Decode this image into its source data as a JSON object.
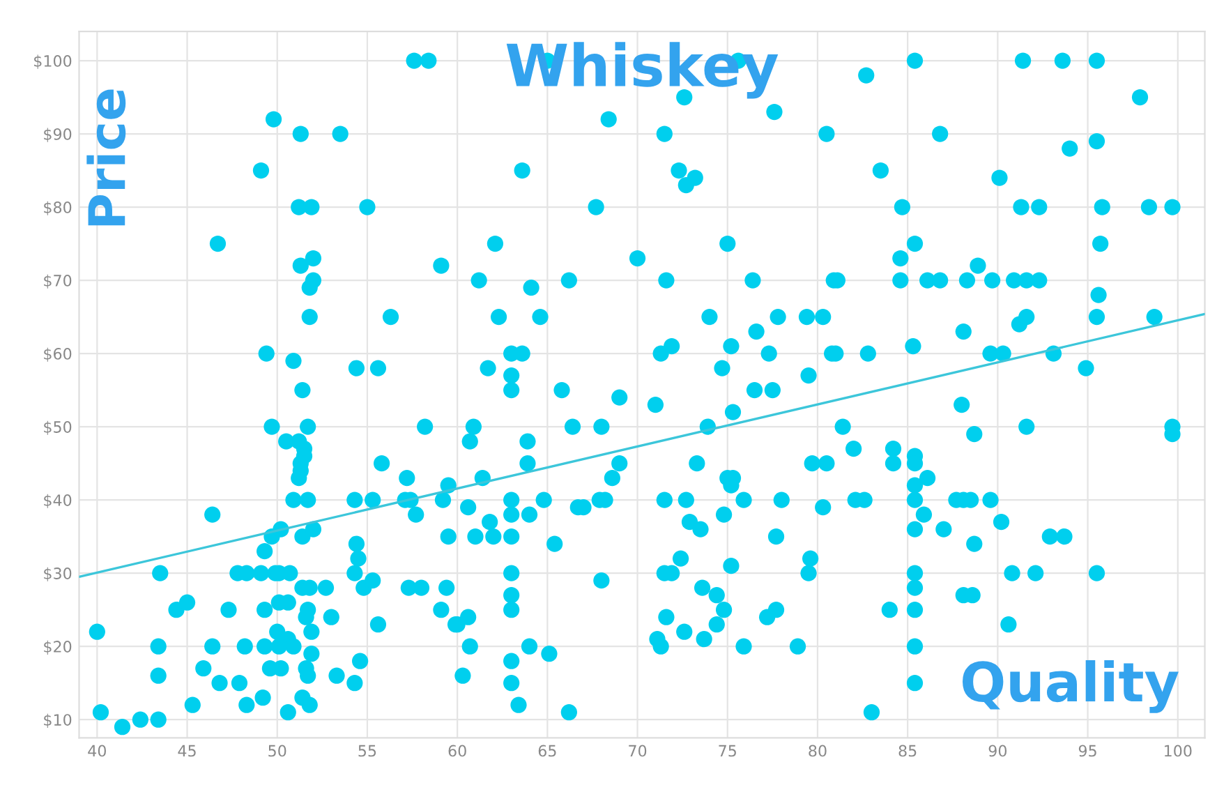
{
  "chart_data": {
    "type": "scatter",
    "title": "Whiskey",
    "xlabel": "Quality",
    "ylabel": "Price",
    "xlim": [
      39,
      101.5
    ],
    "ylim": [
      7.5,
      104
    ],
    "xticks": [
      40,
      45,
      50,
      55,
      60,
      65,
      70,
      75,
      80,
      85,
      90,
      95,
      100
    ],
    "yticks": [
      {
        "value": 10,
        "label": "$10"
      },
      {
        "value": 20,
        "label": "$20"
      },
      {
        "value": 30,
        "label": "$30"
      },
      {
        "value": 40,
        "label": "$40"
      },
      {
        "value": 50,
        "label": "$50"
      },
      {
        "value": 60,
        "label": "$60"
      },
      {
        "value": 70,
        "label": "$70"
      },
      {
        "value": 80,
        "label": "$80"
      },
      {
        "value": 90,
        "label": "$90"
      },
      {
        "value": 100,
        "label": "$100"
      }
    ],
    "grid": true,
    "series": [
      {
        "color": "#00cfee",
        "marker": "circle",
        "x": [
          57.6,
          58.4,
          49.8,
          51.3,
          53.5,
          49.1,
          51.2,
          51.9,
          55.0,
          46.7,
          52.0,
          51.3,
          59.1,
          52.0,
          51.8,
          51.8,
          56.3,
          49.4,
          50.9,
          54.4,
          55.6,
          51.4,
          49.7,
          51.7,
          58.2,
          50.5,
          51.2,
          51.5,
          51.5,
          51.3,
          51.3,
          51.2,
          55.8,
          57.2,
          50.9,
          51.7,
          54.3,
          55.3,
          57.1,
          57.4,
          59.2,
          59.5,
          46.4,
          57.7,
          49.7,
          50.2,
          51.4,
          52.0,
          59.5,
          49.3,
          54.4,
          54.5,
          43.5,
          47.8,
          48.3,
          49.1,
          49.9,
          50.1,
          50.7,
          54.3,
          51.4,
          51.8,
          52.7,
          54.8,
          55.3,
          57.3,
          58.0,
          59.4,
          44.4,
          45.0,
          47.3,
          49.3,
          50.1,
          50.6,
          51.7,
          51.6,
          53.0,
          59.1,
          59.9,
          55.6,
          40.0,
          50.0,
          50.6,
          51.9,
          50.9,
          43.4,
          46.4,
          48.2,
          49.3,
          50.1,
          51.9,
          45.9,
          49.6,
          50.2,
          51.6,
          54.6,
          43.4,
          51.7,
          53.3,
          46.8,
          47.9,
          54.3,
          45.3,
          48.3,
          49.2,
          51.4,
          51.8,
          40.2,
          50.6,
          41.4,
          42.4,
          43.4,
          65.0,
          75.6,
          72.6,
          77.6,
          68.4,
          71.5,
          80.5,
          63.6,
          72.3,
          73.2,
          72.7,
          67.7,
          62.1,
          75.0,
          70.0,
          61.2,
          64.1,
          66.2,
          71.6,
          76.4,
          80.9,
          62.3,
          64.6,
          74.0,
          77.8,
          79.4,
          80.3,
          76.6,
          63.0,
          63.6,
          71.3,
          71.9,
          75.2,
          77.3,
          80.8,
          61.7,
          63.0,
          74.7,
          79.5,
          63.0,
          65.8,
          76.5,
          77.5,
          69.0,
          71.0,
          75.3,
          60.9,
          66.4,
          68.0,
          73.9,
          60.7,
          63.9,
          63.9,
          69.0,
          73.3,
          79.7,
          80.5,
          68.6,
          75.0,
          75.3,
          75.2,
          61.4,
          63.0,
          64.8,
          67.9,
          68.2,
          71.5,
          72.7,
          75.9,
          78.0,
          60.6,
          66.7,
          67.0,
          80.3,
          61.8,
          63.0,
          64.0,
          72.9,
          73.5,
          74.8,
          61.0,
          62.0,
          63.0,
          77.7,
          65.4,
          72.4,
          79.6,
          63.0,
          71.5,
          71.9,
          75.2,
          79.5,
          68.0,
          63.0,
          73.6,
          74.4,
          63.0,
          74.8,
          77.7,
          60.0,
          60.6,
          71.6,
          77.2,
          74.4,
          72.6,
          71.1,
          71.3,
          73.7,
          60.7,
          64.0,
          65.1,
          75.9,
          78.9,
          63.0,
          60.3,
          63.0,
          63.4,
          66.2,
          85.4,
          91.4,
          93.6,
          95.5,
          82.7,
          97.9,
          86.8,
          94.0,
          95.5,
          83.5,
          90.1,
          84.7,
          91.3,
          92.3,
          95.8,
          98.4,
          99.7,
          85.4,
          95.7,
          84.6,
          88.9,
          81.1,
          84.6,
          86.1,
          86.8,
          88.3,
          89.7,
          90.9,
          91.6,
          92.3,
          95.6,
          91.2,
          91.6,
          95.5,
          98.7,
          88.1,
          81.0,
          82.8,
          85.3,
          89.6,
          90.3,
          93.1,
          94.9,
          88.0,
          81.4,
          91.6,
          99.7,
          99.7,
          88.7,
          82.0,
          84.2,
          85.4,
          84.2,
          85.4,
          86.1,
          85.4,
          82.1,
          82.6,
          85.4,
          87.7,
          88.1,
          88.5,
          89.6,
          85.9,
          90.2,
          85.4,
          87.0,
          92.9,
          93.7,
          88.7,
          85.4,
          90.8,
          92.1,
          95.5,
          85.4,
          88.1,
          88.6,
          84.0,
          85.4,
          90.6,
          85.4,
          85.4,
          83.0
        ],
        "values": [
          100,
          100,
          92,
          90,
          90,
          85,
          80,
          80,
          80,
          75,
          73,
          72,
          72,
          70,
          69,
          65,
          65,
          60,
          59,
          58,
          58,
          55,
          50,
          50,
          50,
          48,
          48,
          47,
          46,
          45,
          44,
          43,
          45,
          43,
          40,
          40,
          40,
          40,
          40,
          40,
          40,
          42,
          38,
          38,
          35,
          36,
          35,
          36,
          35,
          33,
          34,
          32,
          30,
          30,
          30,
          30,
          30,
          30,
          30,
          30,
          28,
          28,
          28,
          28,
          29,
          28,
          28,
          28,
          25,
          26,
          25,
          25,
          26,
          26,
          25,
          24,
          24,
          25,
          23,
          23,
          22,
          22,
          21,
          22,
          20,
          20,
          20,
          20,
          20,
          20,
          19,
          17,
          17,
          17,
          17,
          18,
          16,
          16,
          16,
          15,
          15,
          15,
          12,
          12,
          13,
          13,
          12,
          11,
          11,
          9,
          10,
          10,
          100,
          100,
          95,
          93,
          92,
          90,
          90,
          85,
          85,
          84,
          83,
          80,
          75,
          75,
          73,
          70,
          69,
          70,
          70,
          70,
          70,
          65,
          65,
          65,
          65,
          65,
          65,
          63,
          60,
          60,
          60,
          61,
          61,
          60,
          60,
          58,
          57,
          58,
          57,
          55,
          55,
          55,
          55,
          54,
          53,
          52,
          50,
          50,
          50,
          50,
          48,
          48,
          45,
          45,
          45,
          45,
          45,
          43,
          43,
          43,
          42,
          43,
          40,
          40,
          40,
          40,
          40,
          40,
          40,
          40,
          39,
          39,
          39,
          39,
          37,
          38,
          38,
          37,
          36,
          38,
          35,
          35,
          35,
          35,
          34,
          32,
          32,
          30,
          30,
          30,
          31,
          30,
          29,
          27,
          28,
          27,
          25,
          25,
          25,
          23,
          24,
          24,
          24,
          23,
          22,
          21,
          20,
          21,
          20,
          20,
          19,
          20,
          20,
          18,
          16,
          15,
          12,
          11,
          100,
          100,
          100,
          100,
          98,
          95,
          90,
          88,
          89,
          85,
          84,
          80,
          80,
          80,
          80,
          80,
          80,
          75,
          75,
          73,
          72,
          70,
          70,
          70,
          70,
          70,
          70,
          70,
          70,
          70,
          68,
          64,
          65,
          65,
          65,
          63,
          60,
          60,
          61,
          60,
          60,
          60,
          58,
          53,
          50,
          50,
          50,
          49,
          49,
          47,
          47,
          46,
          45,
          45,
          43,
          42,
          40,
          40,
          40,
          40,
          40,
          40,
          40,
          38,
          37,
          36,
          36,
          35,
          35,
          34,
          30,
          30,
          30,
          30,
          28,
          27,
          27,
          25,
          25,
          23,
          20,
          15,
          11
        ]
      },
      {
        "type": "line",
        "color": "#3cc6da",
        "x": [
          39,
          101.5
        ],
        "values": [
          29.5,
          65.4
        ]
      }
    ]
  }
}
